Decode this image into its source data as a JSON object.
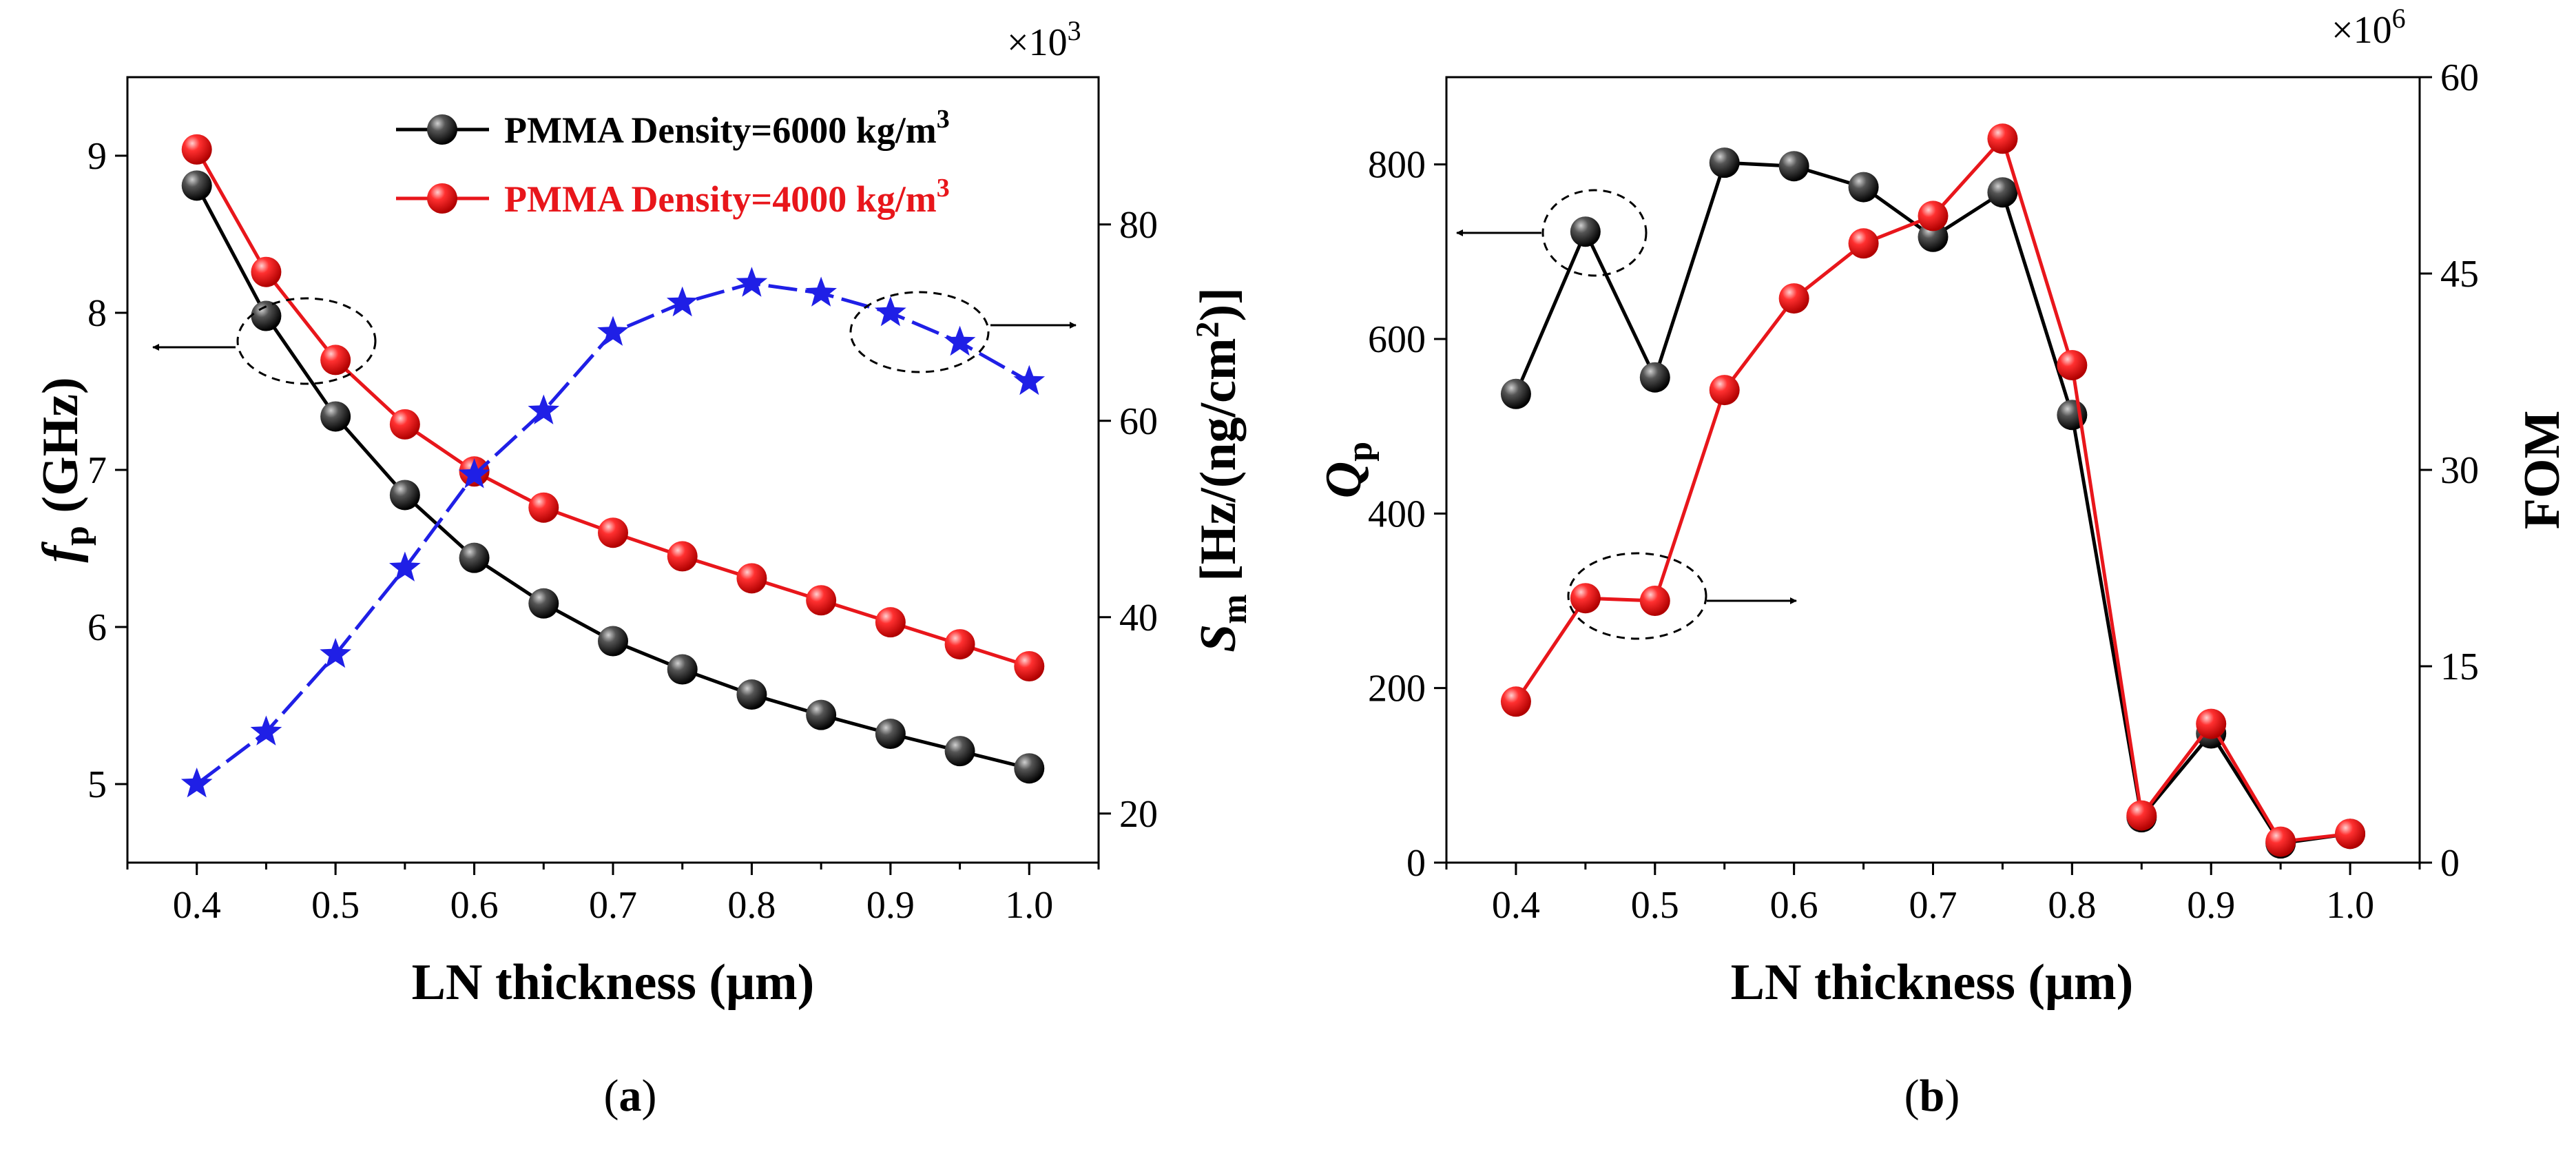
{
  "chart_data": [
    {
      "panel": "(a)",
      "type": "line",
      "caption_open": "(",
      "caption_letter": "a",
      "caption_close": ")",
      "xlabel": "LN thickness (μm)",
      "xlim": [
        0.35,
        1.05
      ],
      "xticks": [
        "0.4",
        "0.5",
        "0.6",
        "0.7",
        "0.8",
        "0.9",
        "1.0"
      ],
      "ylabel_left": {
        "main": "f",
        "sub": "p",
        "rest": " (GHz)"
      },
      "ylim_left": [
        4.5,
        9.5
      ],
      "yticks_left": [
        "5",
        "6",
        "7",
        "8",
        "9"
      ],
      "ylabel_right": {
        "main": "S",
        "sub": "m",
        "rest": " [Hz/(ng/cm",
        "sup": "2",
        "end": ")]"
      },
      "ylim_right": [
        15,
        95
      ],
      "yticks_right": [
        "20",
        "40",
        "60",
        "80"
      ],
      "right_multiplier": {
        "base": "×10",
        "exp": "3"
      },
      "x": [
        0.4,
        0.45,
        0.5,
        0.55,
        0.6,
        0.65,
        0.7,
        0.75,
        0.8,
        0.85,
        0.9,
        0.95,
        1.0
      ],
      "series": [
        {
          "name": "PMMA Density=6000 kg/m",
          "sup": "3",
          "axis": "left",
          "color": "#000000",
          "values": [
            8.81,
            7.98,
            7.34,
            6.84,
            6.44,
            6.15,
            5.91,
            5.73,
            5.57,
            5.44,
            5.32,
            5.21,
            5.1
          ]
        },
        {
          "name": "PMMA Density=4000 kg/m",
          "sup": "3",
          "axis": "left",
          "color": "#e8161b",
          "values": [
            9.04,
            8.26,
            7.7,
            7.29,
            6.99,
            6.76,
            6.6,
            6.45,
            6.31,
            6.17,
            6.03,
            5.89,
            5.75
          ]
        },
        {
          "name": "Sm",
          "axis": "right",
          "color": "#1f1fe6",
          "marker": "star",
          "values": [
            23.0,
            28.3,
            36.2,
            45.0,
            54.5,
            61.0,
            69.0,
            72.0,
            74.0,
            73.0,
            71.0,
            68.0,
            64.0
          ]
        }
      ]
    },
    {
      "panel": "(b)",
      "type": "line",
      "caption_open": "(",
      "caption_letter": "b",
      "caption_close": ")",
      "xlabel": "LN thickness (μm)",
      "xlim": [
        0.35,
        1.05
      ],
      "xticks": [
        "0.4",
        "0.5",
        "0.6",
        "0.7",
        "0.8",
        "0.9",
        "1.0"
      ],
      "ylabel_left": {
        "main": "Q",
        "sub": "p"
      },
      "ylim_left": [
        0,
        900
      ],
      "yticks_left": [
        "0",
        "200",
        "400",
        "600",
        "800"
      ],
      "ylabel_right": {
        "main": "FOM"
      },
      "ylim_right": [
        0,
        60
      ],
      "yticks_right": [
        "0",
        "15",
        "30",
        "45",
        "60"
      ],
      "right_multiplier": {
        "base": "×10",
        "exp": "6"
      },
      "x": [
        0.4,
        0.45,
        0.5,
        0.55,
        0.6,
        0.65,
        0.7,
        0.75,
        0.8,
        0.85,
        0.9,
        0.95,
        1.0
      ],
      "series": [
        {
          "name": "Qp",
          "axis": "left",
          "color": "#000000",
          "values": [
            537,
            723,
            556,
            802,
            798,
            774,
            717,
            768,
            513,
            52,
            148,
            22,
            33
          ]
        },
        {
          "name": "FOM",
          "axis": "right",
          "color": "#e8161b",
          "values": [
            12.3,
            20.2,
            20.0,
            36.1,
            43.1,
            47.3,
            49.4,
            55.3,
            38.0,
            3.6,
            10.6,
            1.6,
            2.2
          ]
        }
      ]
    }
  ]
}
